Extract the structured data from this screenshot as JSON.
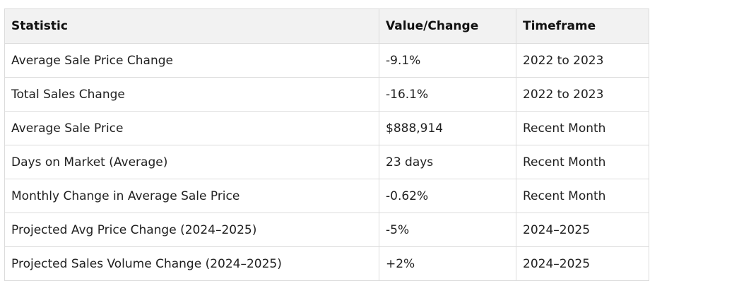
{
  "table": {
    "headers": [
      "Statistic",
      "Value/Change",
      "Timeframe"
    ],
    "rows": [
      [
        "Average Sale Price Change",
        "-9.1%",
        "2022 to 2023"
      ],
      [
        "Total Sales Change",
        "-16.1%",
        "2022 to 2023"
      ],
      [
        "Average Sale Price",
        "$888,914",
        "Recent Month"
      ],
      [
        "Days on Market (Average)",
        "23 days",
        "Recent Month"
      ],
      [
        "Monthly Change in Average Sale Price",
        "-0.62%",
        "Recent Month"
      ],
      [
        "Projected Avg Price Change (2024–2025)",
        "-5%",
        "2024–2025"
      ],
      [
        "Projected Sales Volume Change (2024–2025)",
        "+2%",
        "2024–2025"
      ]
    ]
  }
}
